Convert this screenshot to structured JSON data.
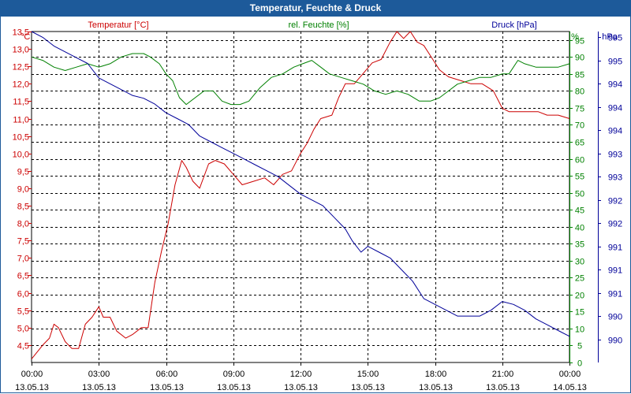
{
  "title": "Temperatur, Feuchte & Druck",
  "colors": {
    "temperature": "#cc0000",
    "humidity": "#008000",
    "pressure": "#000099",
    "titlebar": "#1d5a9a"
  },
  "chart_data": {
    "type": "line",
    "title": "Temperatur, Feuchte & Druck",
    "x_ticks": [
      {
        "time": "00:00",
        "date": "13.05.13"
      },
      {
        "time": "03:00",
        "date": "13.05.13"
      },
      {
        "time": "06:00",
        "date": "13.05.13"
      },
      {
        "time": "09:00",
        "date": "13.05.13"
      },
      {
        "time": "12:00",
        "date": "13.05.13"
      },
      {
        "time": "15:00",
        "date": "13.05.13"
      },
      {
        "time": "18:00",
        "date": "13.05.13"
      },
      {
        "time": "21:00",
        "date": "13.05.13"
      },
      {
        "time": "00:00",
        "date": "14.05.13"
      }
    ],
    "x_range_hours": [
      0,
      24
    ],
    "axes": {
      "temperature": {
        "label": "Temperatur [°C]",
        "unit": "°C",
        "range": [
          4.0,
          13.5
        ],
        "ticks": [
          "4,5",
          "5,0",
          "5,5",
          "6,0",
          "6,5",
          "7,0",
          "7,5",
          "8,0",
          "8,5",
          "9,0",
          "9,5",
          "10,0",
          "10,5",
          "11,0",
          "11,5",
          "12,0",
          "12,5",
          "13,0",
          "13,5"
        ],
        "tick_values": [
          4.5,
          5.0,
          5.5,
          6.0,
          6.5,
          7.0,
          7.5,
          8.0,
          8.5,
          9.0,
          9.5,
          10.0,
          10.5,
          11.0,
          11.5,
          12.0,
          12.5,
          13.0,
          13.5
        ]
      },
      "humidity": {
        "label": "rel. Feuchte [%]",
        "unit": "%",
        "range": [
          0,
          97.5
        ],
        "ticks": [
          "0",
          "5",
          "10",
          "15",
          "20",
          "25",
          "30",
          "35",
          "40",
          "45",
          "50",
          "55",
          "60",
          "65",
          "70",
          "75",
          "80",
          "85",
          "90",
          "95"
        ],
        "tick_values": [
          0,
          5,
          10,
          15,
          20,
          25,
          30,
          35,
          40,
          45,
          50,
          55,
          60,
          65,
          70,
          75,
          80,
          85,
          90,
          95
        ]
      },
      "pressure": {
        "label": "Druck [hPa]",
        "unit": "hPa",
        "range": [
          989.5,
          995.2
        ],
        "ticks": [
          "990",
          "990",
          "991",
          "991",
          "991",
          "992",
          "992",
          "993",
          "993",
          "994",
          "994",
          "994",
          "995",
          "995"
        ],
        "tick_values": [
          989.9,
          990.3,
          990.7,
          991.1,
          991.5,
          991.9,
          992.3,
          992.7,
          993.1,
          993.5,
          993.9,
          994.3,
          994.7,
          995.1
        ]
      }
    },
    "series": [
      {
        "name": "Temperatur",
        "axis": "temperature",
        "x": [
          0,
          0.5,
          0.8,
          1.0,
          1.2,
          1.5,
          1.8,
          2.1,
          2.4,
          2.7,
          3.0,
          3.2,
          3.5,
          3.8,
          4.2,
          4.5,
          4.9,
          5.2,
          5.5,
          5.8,
          6.1,
          6.4,
          6.7,
          6.9,
          7.2,
          7.5,
          7.9,
          8.2,
          8.6,
          9.0,
          9.4,
          9.9,
          10.4,
          10.8,
          11.2,
          11.6,
          12.0,
          12.3,
          12.6,
          12.9,
          13.4,
          13.7,
          14.0,
          14.4,
          14.8,
          15.2,
          15.6,
          16.0,
          16.3,
          16.6,
          16.9,
          17.2,
          17.5,
          17.8,
          18.2,
          18.6,
          19.1,
          19.6,
          20.1,
          20.6,
          21.0,
          21.3,
          21.6,
          21.9,
          22.2,
          22.6,
          23.0,
          23.5,
          24.0
        ],
        "values": [
          4.1,
          4.5,
          4.7,
          5.1,
          5.0,
          4.6,
          4.4,
          4.4,
          5.1,
          5.3,
          5.6,
          5.3,
          5.3,
          4.9,
          4.7,
          4.8,
          5.0,
          5.0,
          6.3,
          7.2,
          8.0,
          9.1,
          9.8,
          9.6,
          9.2,
          9.0,
          9.7,
          9.8,
          9.7,
          9.4,
          9.1,
          9.2,
          9.3,
          9.1,
          9.4,
          9.5,
          10.0,
          10.3,
          10.7,
          11.0,
          11.1,
          11.6,
          12.0,
          12.0,
          12.3,
          12.6,
          12.7,
          13.2,
          13.5,
          13.3,
          13.5,
          13.2,
          13.1,
          12.8,
          12.4,
          12.2,
          12.1,
          12.0,
          12.0,
          11.8,
          11.3,
          11.2,
          11.2,
          11.2,
          11.2,
          11.2,
          11.1,
          11.1,
          11.0
        ]
      },
      {
        "name": "rel. Feuchte",
        "axis": "humidity",
        "x": [
          0,
          0.5,
          1.0,
          1.5,
          2.0,
          2.5,
          3.0,
          3.5,
          4.0,
          4.5,
          5.0,
          5.3,
          5.7,
          6.0,
          6.3,
          6.6,
          6.9,
          7.3,
          7.7,
          8.1,
          8.5,
          8.9,
          9.3,
          9.7,
          10.2,
          10.7,
          11.2,
          11.7,
          12.1,
          12.5,
          12.9,
          13.3,
          13.8,
          14.3,
          14.8,
          15.3,
          15.8,
          16.3,
          16.8,
          17.3,
          17.8,
          18.2,
          18.6,
          19.0,
          19.5,
          20.0,
          20.5,
          21.0,
          21.3,
          21.7,
          22.0,
          22.5,
          23.0,
          23.5,
          24.0
        ],
        "values": [
          90,
          89,
          87,
          86,
          87,
          88,
          87,
          88,
          90,
          91,
          91,
          90,
          88,
          85,
          83,
          78,
          76,
          78,
          80,
          80,
          77,
          76,
          76,
          77,
          81,
          84,
          85,
          87,
          88,
          89,
          87,
          85,
          84,
          83,
          82,
          80,
          79,
          80,
          79,
          77,
          77,
          78,
          80,
          82,
          83,
          84,
          84,
          85,
          85,
          89,
          88,
          87,
          87,
          87,
          88
        ]
      },
      {
        "name": "Druck",
        "axis": "pressure",
        "x": [
          0,
          0.5,
          1.0,
          1.5,
          2.0,
          2.5,
          3.0,
          3.5,
          4.0,
          4.5,
          5.0,
          5.5,
          6.0,
          6.5,
          7.0,
          7.5,
          8.0,
          8.5,
          9.0,
          9.5,
          10.0,
          10.5,
          11.0,
          11.5,
          12.0,
          12.5,
          13.0,
          13.5,
          14.0,
          14.3,
          14.7,
          15.0,
          15.5,
          16.0,
          16.5,
          17.0,
          17.5,
          18.0,
          18.5,
          19.0,
          19.5,
          20.0,
          20.5,
          21.0,
          21.5,
          22.0,
          22.5,
          23.0,
          23.5,
          24.0
        ],
        "values": [
          995.2,
          995.1,
          994.95,
          994.85,
          994.75,
          994.65,
          994.4,
          994.3,
          994.2,
          994.1,
          994.05,
          993.95,
          993.8,
          993.7,
          993.6,
          993.4,
          993.3,
          993.2,
          993.1,
          993.0,
          992.9,
          992.8,
          992.7,
          992.55,
          992.4,
          992.3,
          992.2,
          992.0,
          991.8,
          991.6,
          991.4,
          991.5,
          991.4,
          991.3,
          991.1,
          990.9,
          990.6,
          990.5,
          990.4,
          990.3,
          990.3,
          990.3,
          990.4,
          990.55,
          990.5,
          990.4,
          990.25,
          990.15,
          990.05,
          989.95
        ]
      }
    ]
  }
}
